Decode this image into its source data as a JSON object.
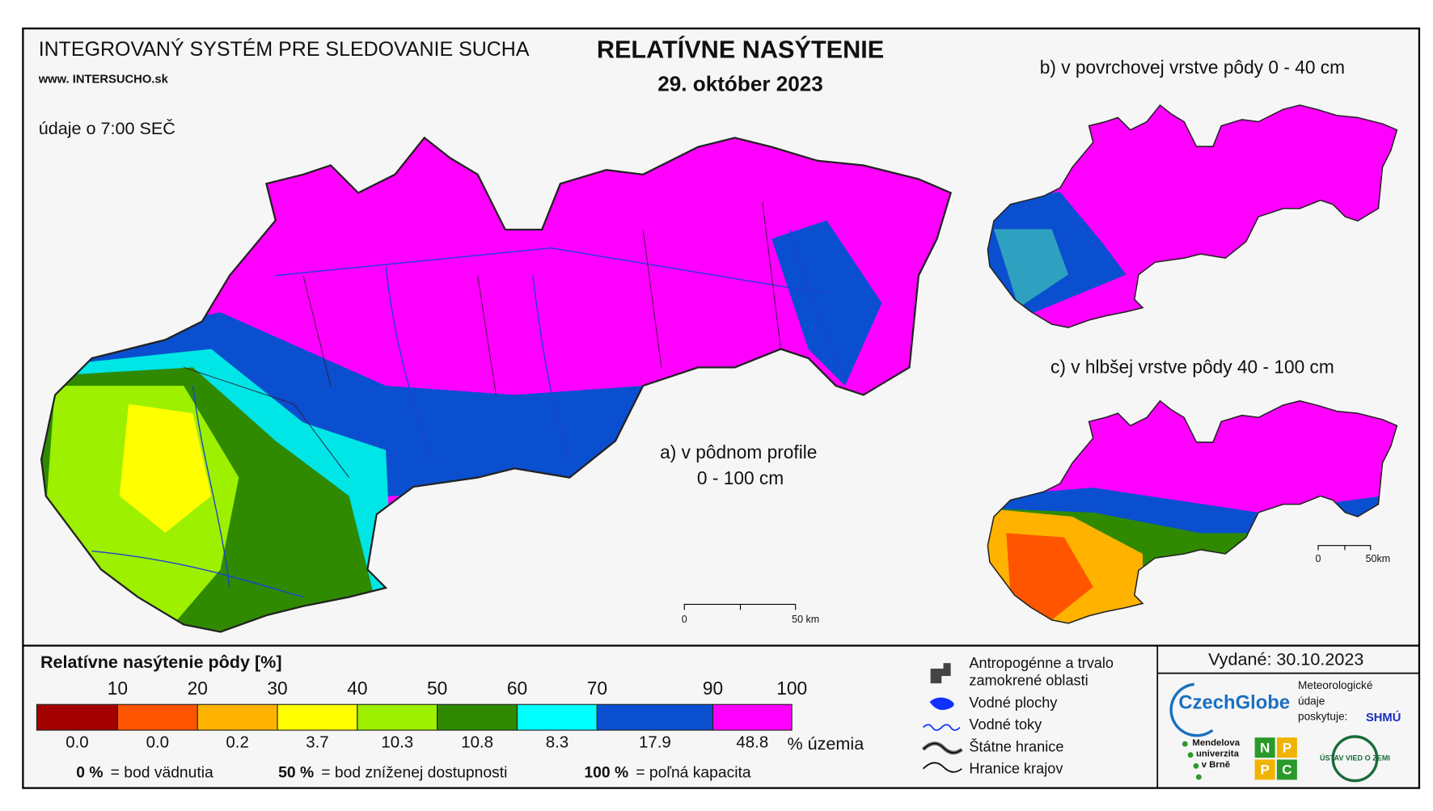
{
  "header": {
    "system": "INTEGROVANÝ SYSTÉM PRE SLEDOVANIE SUCHA",
    "website": "www. INTERSUCHO.sk",
    "time_note": "údaje o 7:00 SEČ",
    "title": "RELATÍVNE NASÝTENIE",
    "date": "29. október 2023"
  },
  "maps": {
    "a_label_line1": "a) v pôdnom profile",
    "a_label_line2": "0 - 100 cm",
    "b_label": "b) v povrchovej vrstve pôdy 0 - 40 cm",
    "c_label": "c) v hlbšej vrstve pôdy 40 - 100 cm",
    "scale_zero": "0",
    "scale_main": "50 km",
    "scale_small": "50km"
  },
  "legend": {
    "title": "Relatívne nasýtenie pôdy [%]",
    "thresholds": [
      10,
      20,
      30,
      40,
      50,
      60,
      70,
      90,
      100
    ],
    "classes": [
      {
        "color": "#a30000",
        "share": "0.0"
      },
      {
        "color": "#ff5500",
        "share": "0.0"
      },
      {
        "color": "#ffb300",
        "share": "0.2"
      },
      {
        "color": "#ffff00",
        "share": "3.7"
      },
      {
        "color": "#9cf000",
        "share": "10.3"
      },
      {
        "color": "#2f8a00",
        "share": "10.8"
      },
      {
        "color": "#00ffff",
        "share": "8.3"
      },
      {
        "color": "#0a4fcf",
        "share": "17.9"
      },
      {
        "color": "#ff00ff",
        "share": "48.8"
      }
    ],
    "share_unit": "% územia",
    "notes": [
      {
        "value": "0 %",
        "text": "= bod vädnutia"
      },
      {
        "value": "50 %",
        "text": "= bod zníženej dostupnosti"
      },
      {
        "value": "100 %",
        "text": "= poľná kapacita"
      }
    ]
  },
  "symbols": [
    "Antropogénne a trvalo",
    "zamokrené oblasti",
    "Vodné plochy",
    "Vodné toky",
    "Štátne hranice",
    "Hranice krajov"
  ],
  "issued": "Vydané: 30.10.2023",
  "logos": {
    "czechglobe": "CzechGlobe",
    "provider_1": "Meteorologické",
    "provider_2": "údaje",
    "provider_3": "poskytuje:",
    "shmu": "SHMÚ",
    "mendel_1": "Mendelova",
    "mendel_2": "univerzita",
    "mendel_3": "v Brně",
    "nppc": [
      "N",
      "P",
      "P",
      "C"
    ],
    "uvz": "ÚSTAV VIED O ZEMI"
  }
}
